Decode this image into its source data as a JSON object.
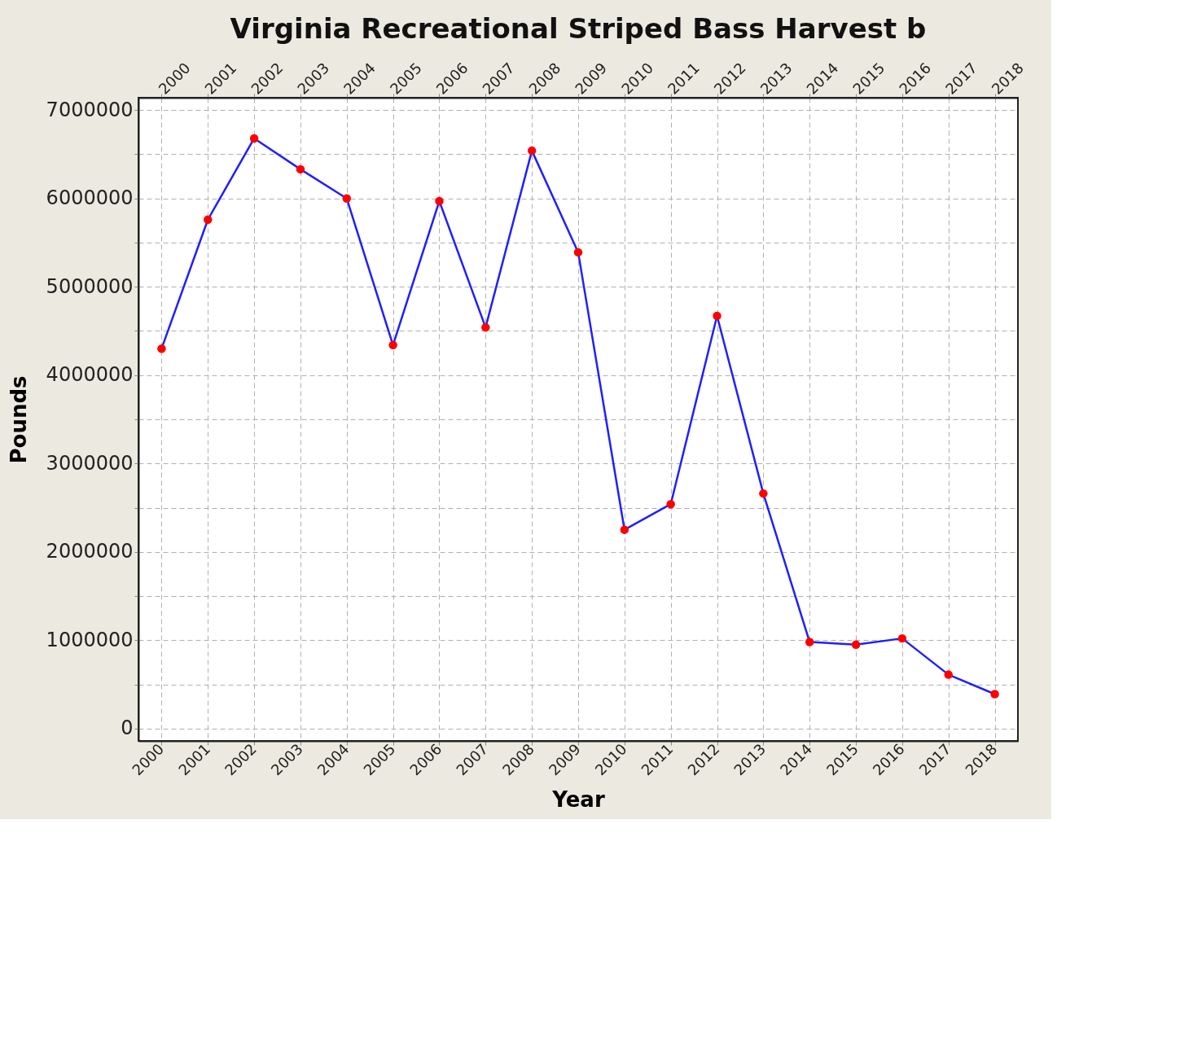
{
  "chart_data": {
    "type": "line",
    "title": "Virginia Recreational Striped Bass Harvest b",
    "xlabel": "Year",
    "ylabel": "Pounds",
    "categories": [
      "2000",
      "2001",
      "2002",
      "2003",
      "2004",
      "2005",
      "2006",
      "2007",
      "2008",
      "2009",
      "2010",
      "2011",
      "2012",
      "2013",
      "2014",
      "2015",
      "2016",
      "2017",
      "2018"
    ],
    "series": [
      {
        "color": "#1f1fff",
        "values": [
          4300000,
          5760000,
          6680000,
          6330000,
          6000000,
          4340000,
          5970000,
          4540000,
          6540000,
          5390000,
          2250000,
          2540000,
          4670000,
          2660000,
          980000,
          950000,
          1020000,
          610000,
          390000
        ]
      }
    ],
    "ylim": [
      -140000,
      7140000
    ],
    "yticks": [
      0,
      {
        "value": 500000,
        "label": null
      },
      1000000,
      {
        "value": 1500000,
        "label": null
      },
      2000000,
      {
        "value": 2500000,
        "label": null
      },
      3000000,
      {
        "value": 3500000,
        "label": null
      },
      4000000,
      {
        "value": 4500000,
        "label": null
      },
      5000000,
      {
        "value": 5500000,
        "label": null
      },
      6000000,
      {
        "value": 6500000,
        "label": null
      },
      7000000
    ],
    "grid": true,
    "marker": "circle",
    "line_style": "solid"
  }
}
